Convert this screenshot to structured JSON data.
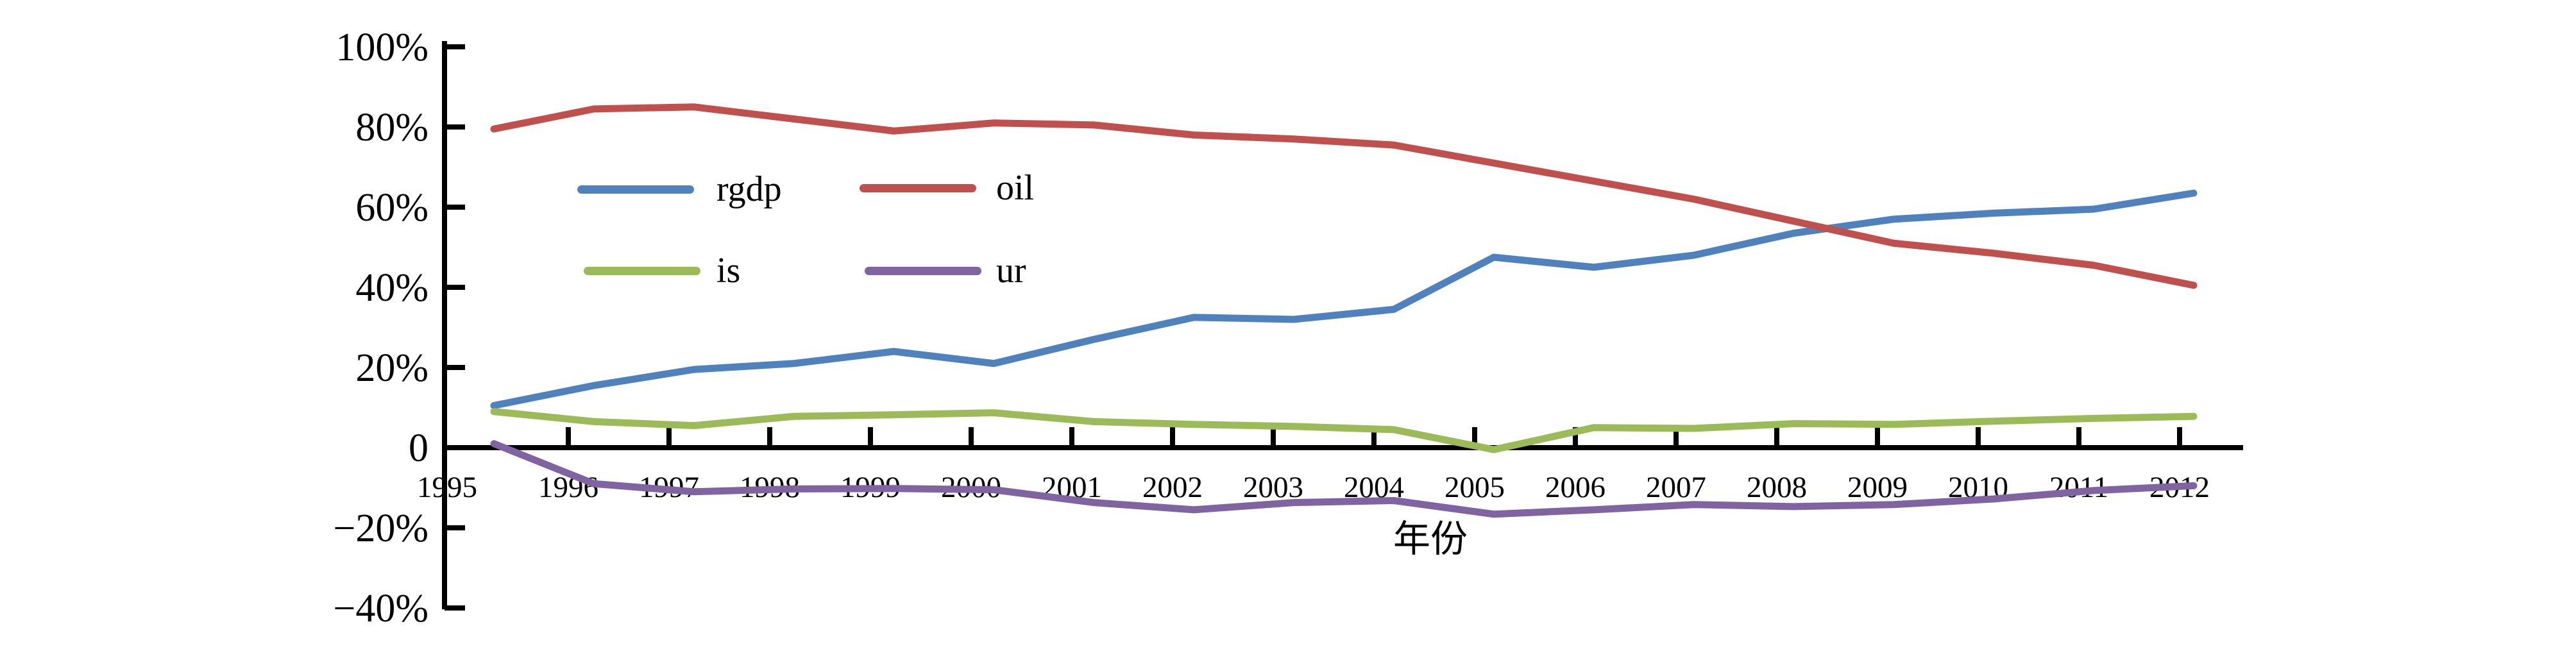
{
  "chart_data": {
    "type": "line",
    "title": "",
    "xlabel": "年份",
    "ylabel": "",
    "grid": false,
    "legend_position": "inside-top-left-two-columns",
    "ylim": [
      -40,
      100
    ],
    "y_ticks": [
      {
        "value": 100,
        "label": "100%"
      },
      {
        "value": 80,
        "label": "80%"
      },
      {
        "value": 60,
        "label": "60%"
      },
      {
        "value": 40,
        "label": "40%"
      },
      {
        "value": 20,
        "label": "20%"
      },
      {
        "value": 0,
        "label": "0"
      },
      {
        "value": -20,
        "label": "−20%"
      },
      {
        "value": -40,
        "label": "−40%"
      }
    ],
    "categories": [
      "1995",
      "1996",
      "1997",
      "1998",
      "1999",
      "2000",
      "2001",
      "2002",
      "2003",
      "2004",
      "2005",
      "2006",
      "2007",
      "2008",
      "2009",
      "2010",
      "2011",
      "2012"
    ],
    "series": [
      {
        "name": "rgdp",
        "color": "#4F81BD",
        "values": [
          10.5,
          15.5,
          19.5,
          21,
          24,
          21,
          27,
          32.5,
          32,
          34.5,
          47.5,
          45,
          48,
          53.5,
          57,
          58.5,
          59.5,
          63.5
        ]
      },
      {
        "name": "oil",
        "color": "#C0504D",
        "values": [
          79.5,
          84.5,
          85,
          82,
          79,
          81,
          80.5,
          78,
          77,
          75.5,
          71,
          66.5,
          62,
          56.5,
          51,
          48.5,
          45.5,
          40.5
        ]
      },
      {
        "name": "is",
        "color": "#9BBB59",
        "values": [
          9,
          6.5,
          5.5,
          7.8,
          8.2,
          8.7,
          6.5,
          5.8,
          5.3,
          4.5,
          -0.5,
          5,
          4.8,
          6,
          5.8,
          6.6,
          7.3,
          7.8
        ]
      },
      {
        "name": "ur",
        "color": "#8064A2",
        "values": [
          1,
          -9,
          -11,
          -10.3,
          -10.2,
          -10.5,
          -13.7,
          -15.5,
          -13.7,
          -13.2,
          -16.6,
          -15.5,
          -14.2,
          -14.7,
          -14.2,
          -12.8,
          -10.7,
          -9.5
        ]
      }
    ]
  }
}
